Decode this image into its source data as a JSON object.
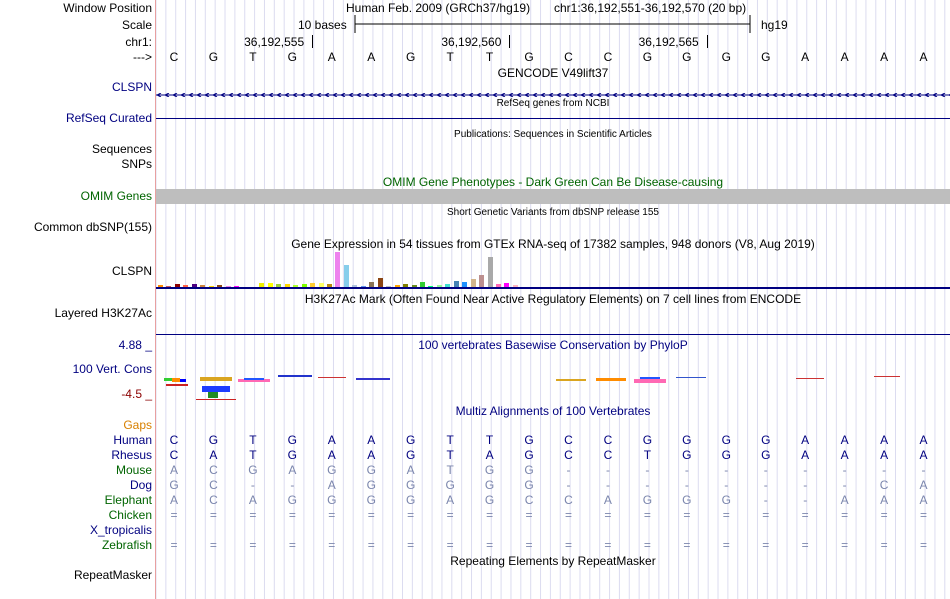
{
  "colors": {
    "navy": "#000080",
    "green": "#006400",
    "red": "#8b0000",
    "orange": "#d88000",
    "mute": "#7b86ad",
    "gray": "#bebebe"
  },
  "labels": {
    "window_position": "Window Position",
    "scale": "Scale",
    "chr": "chr1:",
    "arrow": "--->",
    "clspn": "CLSPN",
    "refseq": "RefSeq Curated",
    "sequences": "Sequences",
    "snps": "SNPs",
    "omim": "OMIM Genes",
    "dbsnp": "Common dbSNP(155)",
    "gtex": "CLSPN",
    "h3k27ac": "Layered H3K27Ac",
    "cons_max": "4.88 _",
    "cons": "100 Vert. Cons",
    "cons_min": "-4.5 _",
    "gaps": "Gaps",
    "repeat": "RepeatMasker"
  },
  "header": {
    "assembly": "Human Feb. 2009 (GRCh37/hg19)",
    "position": "chr1:36,192,551-36,192,570 (20 bp)",
    "scale_text": "10 bases",
    "db": "hg19",
    "ticks": [
      {
        "label": "36,192,555",
        "pos": 4
      },
      {
        "label": "36,192,560",
        "pos": 9
      },
      {
        "label": "36,192,565",
        "pos": 14
      }
    ]
  },
  "sequence": [
    "C",
    "G",
    "T",
    "G",
    "A",
    "A",
    "G",
    "T",
    "T",
    "G",
    "C",
    "C",
    "G",
    "G",
    "G",
    "G",
    "A",
    "A",
    "A",
    "A"
  ],
  "titles": {
    "gencode": "GENCODE V49lift37",
    "refseq": "RefSeq genes from NCBI",
    "pubs": "Publications: Sequences in Scientific Articles",
    "omim": "OMIM Gene Phenotypes - Dark Green Can Be Disease-causing",
    "dbsnp": "Short Genetic Variants from dbSNP release 155",
    "gtex": "Gene Expression in 54 tissues from GTEx RNA-seq of 17382 samples, 948 donors (V8, Aug 2019)",
    "h3k27ac": "H3K27Ac Mark (Often Found Near Active Regulatory Elements) on 7 cell lines from ENCODE",
    "phylop": "100 vertebrates Basewise Conservation by PhyloP",
    "multiz": "Multiz Alignments of 100 Vertebrates",
    "repeat": "Repeating Elements by RepeatMasker"
  },
  "gtex_bars": [
    {
      "h": 2,
      "c": "#ff8c00"
    },
    {
      "h": 1,
      "c": "#cd5c5c"
    },
    {
      "h": 3,
      "c": "#8b0000"
    },
    {
      "h": 2,
      "c": "#ff6347"
    },
    {
      "h": 3,
      "c": "#4b0082"
    },
    {
      "h": 2,
      "c": "#cd853f"
    },
    {
      "h": 1,
      "c": "#ffd700"
    },
    {
      "h": 2,
      "c": "#8b4513"
    },
    {
      "h": 1,
      "c": "#ee82ee"
    },
    {
      "h": 1,
      "c": "#ff00ff"
    },
    {
      "h": 0,
      "c": "#ffffff"
    },
    {
      "h": 0,
      "c": "#ffffff"
    },
    {
      "h": 4,
      "c": "#eeee00"
    },
    {
      "h": 4,
      "c": "#ffff00"
    },
    {
      "h": 3,
      "c": "#9acd32"
    },
    {
      "h": 3,
      "c": "#ffd700"
    },
    {
      "h": 2,
      "c": "#adff2f"
    },
    {
      "h": 3,
      "c": "#7fff00"
    },
    {
      "h": 4,
      "c": "#ffcc33"
    },
    {
      "h": 4,
      "c": "#ffff66"
    },
    {
      "h": 3,
      "c": "#b8860b"
    },
    {
      "h": 35,
      "c": "#ee82ee"
    },
    {
      "h": 22,
      "c": "#87ceeb"
    },
    {
      "h": 2,
      "c": "#b0c4de"
    },
    {
      "h": 1,
      "c": "#6495ed"
    },
    {
      "h": 5,
      "c": "#8b7355"
    },
    {
      "h": 9,
      "c": "#8b4513"
    },
    {
      "h": 1,
      "c": "#c0c0c0"
    },
    {
      "h": 2,
      "c": "#ffa500"
    },
    {
      "h": 3,
      "c": "#808000"
    },
    {
      "h": 2,
      "c": "#6b8e23"
    },
    {
      "h": 5,
      "c": "#32cd32"
    },
    {
      "h": 1,
      "c": "#00ff7f"
    },
    {
      "h": 2,
      "c": "#98fb98"
    },
    {
      "h": 3,
      "c": "#40e0d0"
    },
    {
      "h": 6,
      "c": "#4682b4"
    },
    {
      "h": 5,
      "c": "#1e90ff"
    },
    {
      "h": 8,
      "c": "#d2b48c"
    },
    {
      "h": 12,
      "c": "#bc8f8f"
    },
    {
      "h": 30,
      "c": "#a9a9a9"
    },
    {
      "h": 3,
      "c": "#ff69b4"
    },
    {
      "h": 4,
      "c": "#ff00ff"
    },
    {
      "h": 2,
      "c": "#ffb6c1"
    },
    {
      "h": 0,
      "c": "#ffffff"
    }
  ],
  "alignment": [
    {
      "species": "Human",
      "color": "#000080",
      "cell": "#000080",
      "bases": [
        "C",
        "G",
        "T",
        "G",
        "A",
        "A",
        "G",
        "T",
        "T",
        "G",
        "C",
        "C",
        "G",
        "G",
        "G",
        "G",
        "A",
        "A",
        "A",
        "A"
      ]
    },
    {
      "species": "Rhesus",
      "color": "#000080",
      "cell": "#000080",
      "bases": [
        "C",
        "A",
        "T",
        "G",
        "A",
        "A",
        "G",
        "T",
        "A",
        "G",
        "C",
        "C",
        "T",
        "G",
        "G",
        "G",
        "A",
        "A",
        "A",
        "A"
      ]
    },
    {
      "species": "Mouse",
      "color": "#006400",
      "cell": "#7b86ad",
      "bases": [
        "A",
        "C",
        "G",
        "A",
        "G",
        "G",
        "A",
        "T",
        "G",
        "G",
        "-",
        "-",
        "-",
        "-",
        "-",
        "-",
        "-",
        "-",
        "-",
        "-"
      ]
    },
    {
      "species": "Dog",
      "color": "#000080",
      "cell": "#7b86ad",
      "bases": [
        "G",
        "C",
        "-",
        "-",
        "A",
        "G",
        "G",
        "G",
        "G",
        "G",
        "-",
        "-",
        "-",
        "-",
        "-",
        "-",
        "-",
        "-",
        "C",
        "A"
      ]
    },
    {
      "species": "Elephant",
      "color": "#006400",
      "cell": "#7b86ad",
      "bases": [
        "A",
        "C",
        "A",
        "G",
        "G",
        "G",
        "G",
        "A",
        "G",
        "C",
        "C",
        "A",
        "G",
        "G",
        "G",
        "-",
        "-",
        "A",
        "A",
        "A"
      ]
    },
    {
      "species": "Chicken",
      "color": "#006400",
      "cell": "#7b86ad",
      "bases": [
        "=",
        "=",
        "=",
        "=",
        "=",
        "=",
        "=",
        "=",
        "=",
        "=",
        "=",
        "=",
        "=",
        "=",
        "=",
        "=",
        "=",
        "=",
        "=",
        "="
      ]
    },
    {
      "species": "X_tropicalis",
      "color": "#000080",
      "cell": "#7b86ad",
      "bases": [
        "",
        "",
        "",
        "",
        "",
        "",
        "",
        "",
        "",
        "",
        "",
        "",
        "",
        "",
        "",
        "",
        "",
        "",
        "",
        ""
      ]
    },
    {
      "species": "Zebrafish",
      "color": "#006400",
      "cell": "#7b86ad",
      "bases": [
        "=",
        "=",
        "=",
        "=",
        "=",
        "=",
        "=",
        "=",
        "=",
        "=",
        "=",
        "=",
        "=",
        "=",
        "=",
        "=",
        "=",
        "=",
        "=",
        "="
      ]
    }
  ]
}
